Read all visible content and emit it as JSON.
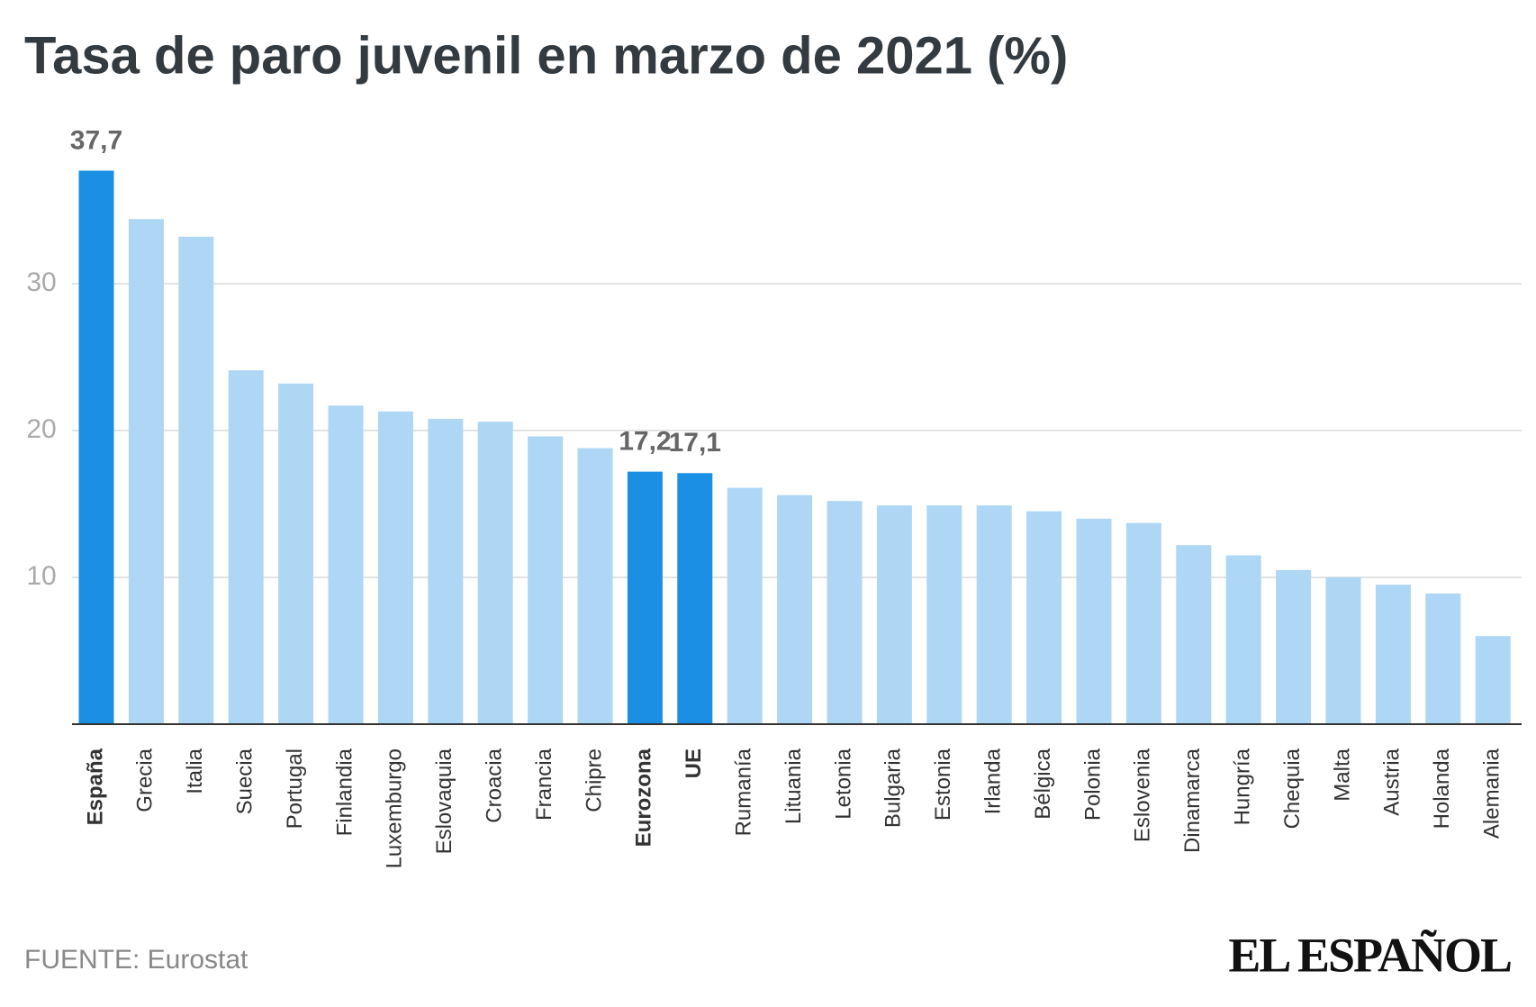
{
  "chart_data": {
    "type": "bar",
    "title": "Tasa de paro juvenil en marzo de 2021 (%)",
    "categories": [
      "España",
      "Grecia",
      "Italia",
      "Suecia",
      "Portugal",
      "Finlandia",
      "Luxemburgo",
      "Eslovaquia",
      "Croacia",
      "Francia",
      "Chipre",
      "Eurozona",
      "UE",
      "Rumanía",
      "Lituania",
      "Letonia",
      "Bulgaria",
      "Estonia",
      "Irlanda",
      "Bélgica",
      "Polonia",
      "Eslovenia",
      "Dinamarca",
      "Hungría",
      "Chequia",
      "Malta",
      "Austria",
      "Holanda",
      "Alemania"
    ],
    "values": [
      37.7,
      34.4,
      33.2,
      24.1,
      23.2,
      21.7,
      21.3,
      20.8,
      20.6,
      19.6,
      18.8,
      17.2,
      17.1,
      16.1,
      15.6,
      15.2,
      14.9,
      14.9,
      14.9,
      14.5,
      14.0,
      13.7,
      12.2,
      11.5,
      10.5,
      10.0,
      9.5,
      8.9,
      6.0
    ],
    "value_labels": [
      "37,7",
      null,
      null,
      null,
      null,
      null,
      null,
      null,
      null,
      null,
      null,
      "17,2",
      "17,1",
      null,
      null,
      null,
      null,
      null,
      null,
      null,
      null,
      null,
      null,
      null,
      null,
      null,
      null,
      null,
      null
    ],
    "colors": [
      "#1a8fe3",
      "#aed6f5",
      "#aed6f5",
      "#aed6f5",
      "#aed6f5",
      "#aed6f5",
      "#aed6f5",
      "#aed6f5",
      "#aed6f5",
      "#aed6f5",
      "#aed6f5",
      "#1a8fe3",
      "#1a8fe3",
      "#aed6f5",
      "#aed6f5",
      "#aed6f5",
      "#aed6f5",
      "#aed6f5",
      "#aed6f5",
      "#aed6f5",
      "#aed6f5",
      "#aed6f5",
      "#aed6f5",
      "#aed6f5",
      "#aed6f5",
      "#aed6f5",
      "#aed6f5",
      "#aed6f5",
      "#aed6f5"
    ],
    "ylim": [
      0,
      40
    ],
    "yticks": [
      10,
      20,
      30
    ],
    "grid": true,
    "source": "FUENTE: Eurostat",
    "brand": "EL ESPAÑOL"
  }
}
